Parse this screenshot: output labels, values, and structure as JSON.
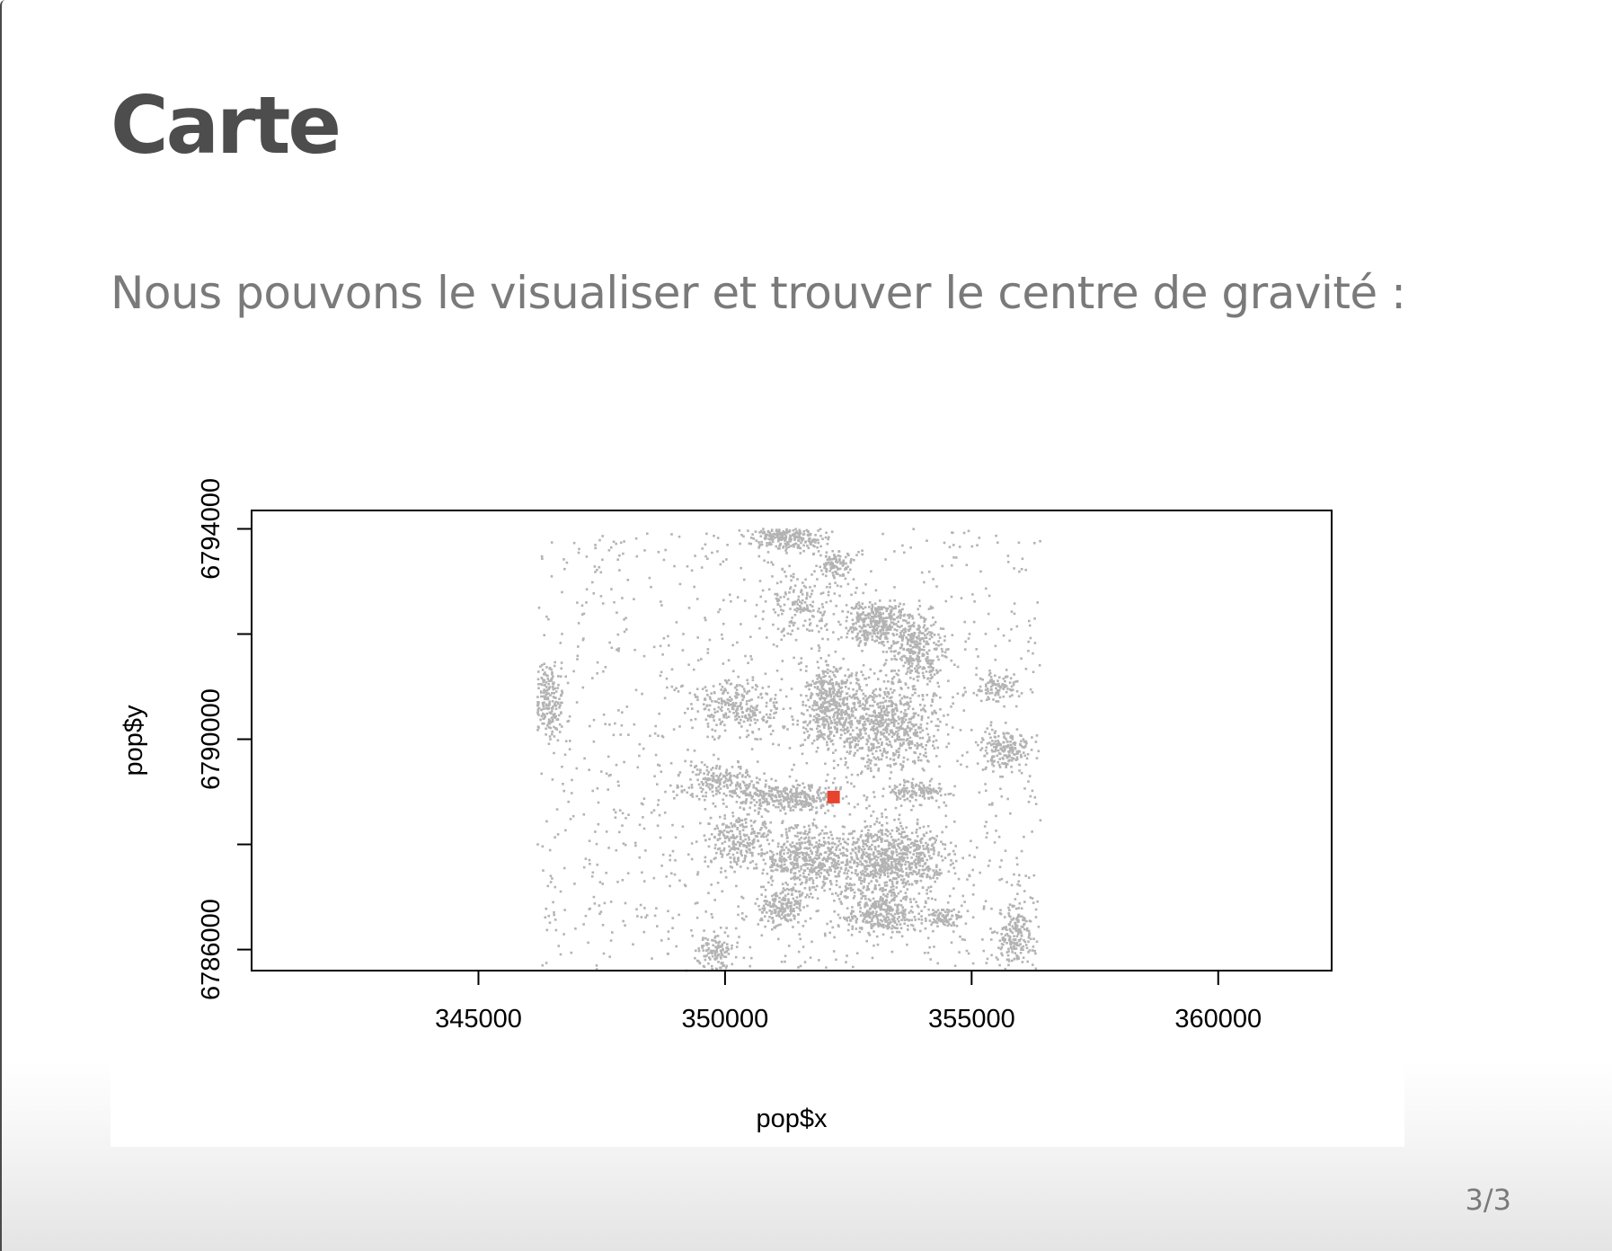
{
  "slide": {
    "title": "Carte",
    "subtitle": "Nous pouvons le visualiser et trouver le centre de gravité :",
    "page_number": "3/3"
  },
  "chart_data": {
    "type": "scatter",
    "xlabel": "pop$x",
    "ylabel": "pop$y",
    "xlim": [
      340400,
      362300
    ],
    "ylim": [
      6785600,
      6794350
    ],
    "x_ticks": [
      345000,
      350000,
      355000,
      360000
    ],
    "y_ticks": [
      6786000,
      6788000,
      6790000,
      6792000,
      6794000
    ],
    "x_tick_labels": [
      "345000",
      "350000",
      "355000",
      "360000"
    ],
    "y_tick_labels": [
      "6786000",
      "",
      "6790000",
      "",
      "6794000"
    ],
    "grid": false,
    "colors": {
      "points": "#b3b3b3",
      "centroid": "#e8432e",
      "axes": "#000000"
    },
    "series": [
      {
        "role": "population points (building clusters)",
        "clusters": [
          {
            "cx": 351300,
            "cy": 6793850,
            "sx": 600,
            "sy": 200,
            "n": 260
          },
          {
            "cx": 352200,
            "cy": 6793300,
            "sx": 300,
            "sy": 200,
            "n": 90
          },
          {
            "cx": 353100,
            "cy": 6792200,
            "sx": 500,
            "sy": 350,
            "n": 330
          },
          {
            "cx": 353900,
            "cy": 6791700,
            "sx": 450,
            "sy": 500,
            "n": 300
          },
          {
            "cx": 352100,
            "cy": 6790700,
            "sx": 450,
            "sy": 600,
            "n": 380
          },
          {
            "cx": 353200,
            "cy": 6790300,
            "sx": 900,
            "sy": 700,
            "n": 700
          },
          {
            "cx": 350300,
            "cy": 6790600,
            "sx": 700,
            "sy": 400,
            "n": 250
          },
          {
            "cx": 349900,
            "cy": 6789200,
            "sx": 600,
            "sy": 250,
            "n": 180
          },
          {
            "cx": 351300,
            "cy": 6788900,
            "sx": 900,
            "sy": 200,
            "n": 320
          },
          {
            "cx": 353900,
            "cy": 6789000,
            "sx": 500,
            "sy": 150,
            "n": 120
          },
          {
            "cx": 350300,
            "cy": 6788100,
            "sx": 500,
            "sy": 400,
            "n": 220
          },
          {
            "cx": 351700,
            "cy": 6787700,
            "sx": 700,
            "sy": 500,
            "n": 450
          },
          {
            "cx": 353400,
            "cy": 6787700,
            "sx": 900,
            "sy": 550,
            "n": 750
          },
          {
            "cx": 351200,
            "cy": 6786800,
            "sx": 400,
            "sy": 300,
            "n": 180
          },
          {
            "cx": 353200,
            "cy": 6786700,
            "sx": 600,
            "sy": 300,
            "n": 300
          },
          {
            "cx": 354400,
            "cy": 6786600,
            "sx": 300,
            "sy": 150,
            "n": 90
          },
          {
            "cx": 346400,
            "cy": 6790700,
            "sx": 250,
            "sy": 500,
            "n": 200
          },
          {
            "cx": 355700,
            "cy": 6789800,
            "sx": 400,
            "sy": 300,
            "n": 180
          },
          {
            "cx": 355900,
            "cy": 6786300,
            "sx": 300,
            "sy": 500,
            "n": 170
          },
          {
            "cx": 349800,
            "cy": 6785900,
            "sx": 300,
            "sy": 300,
            "n": 120
          },
          {
            "cx": 355500,
            "cy": 6791000,
            "sx": 300,
            "sy": 200,
            "n": 90
          },
          {
            "cx": 351600,
            "cy": 6792600,
            "sx": 600,
            "sy": 500,
            "n": 150
          }
        ],
        "scatter_extent": {
          "x": [
            346200,
            356400
          ],
          "y": [
            6785600,
            6794000
          ],
          "n": 1200
        }
      },
      {
        "role": "centre de gravité",
        "x": [
          352200
        ],
        "y": [
          6788900
        ]
      }
    ]
  }
}
